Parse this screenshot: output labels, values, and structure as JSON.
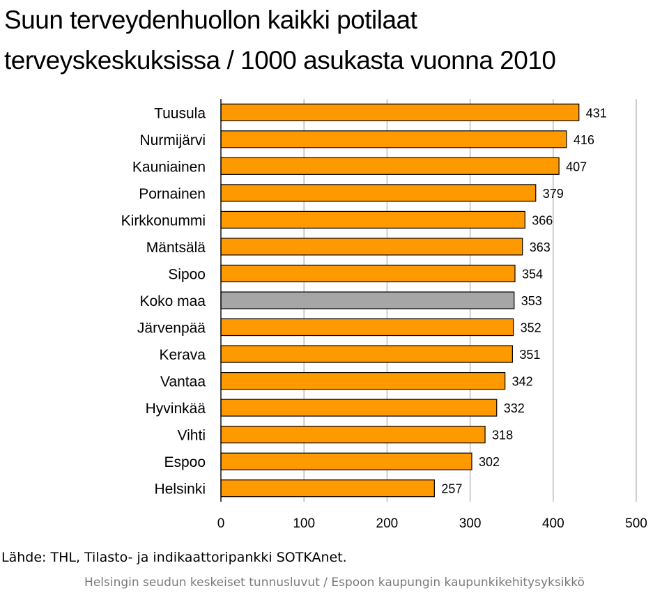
{
  "title_line1": "Suun terveydenhuollon kaikki potilaat",
  "title_line2": "terveyskeskuksissa / 1000 asukasta vuonna 2010",
  "source": "Lähde: THL, Tilasto- ja indikaattoripankki SOTKAnet.",
  "footer": "Helsingin seudun keskeiset tunnusluvut / Espoon kaupungin kaupunkikehitysyksikkö",
  "colors": {
    "bar": "#ff9900",
    "highlight": "#a6a6a6",
    "grid": "#b3b3b3",
    "axis": "#000000"
  },
  "chart_data": {
    "type": "bar",
    "orientation": "horizontal",
    "categories": [
      "Tuusula",
      "Nurmijärvi",
      "Kauniainen",
      "Pornainen",
      "Kirkkonummi",
      "Mäntsälä",
      "Sipoo",
      "Koko maa",
      "Järvenpää",
      "Kerava",
      "Vantaa",
      "Hyvinkää",
      "Vihti",
      "Espoo",
      "Helsinki"
    ],
    "values": [
      431,
      416,
      407,
      379,
      366,
      363,
      354,
      353,
      352,
      351,
      342,
      332,
      318,
      302,
      257
    ],
    "highlight": "Koko maa",
    "xlim": [
      0,
      500
    ],
    "xticks": [
      0,
      100,
      200,
      300,
      400,
      500
    ],
    "grid": true,
    "data_labels": true
  }
}
